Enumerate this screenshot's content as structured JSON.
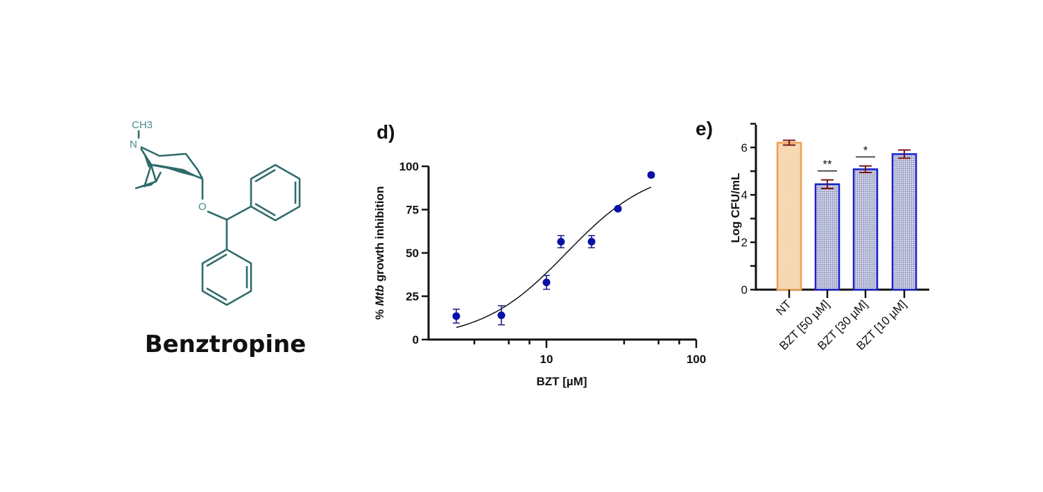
{
  "molecule": {
    "name": "Benztropine",
    "atoms": {
      "methyl": "CH3",
      "nitrogen": "N",
      "oxygen": "O"
    },
    "color": "#2f6b6b"
  },
  "chart_data": [
    {
      "panel_label": "d)",
      "type": "scatter",
      "xlabel": "BZT [µM]",
      "ylabel_prefix": "% ",
      "ylabel_italic": "Mtb",
      "ylabel_suffix": " growth inhibition",
      "x_scale": "log",
      "xlim": [
        1.6,
        100
      ],
      "ylim": [
        0,
        100
      ],
      "x_ticks": [
        "10",
        "100"
      ],
      "y_ticks": [
        "0",
        "25",
        "50",
        "75",
        "100"
      ],
      "grid": false,
      "marker_color": "#0a10a8",
      "points": [
        {
          "x": 2.5,
          "y": 13.5,
          "err": 4
        },
        {
          "x": 5,
          "y": 14,
          "err": 5.5
        },
        {
          "x": 10,
          "y": 33,
          "err": 4
        },
        {
          "x": 12.5,
          "y": 56.5,
          "err": 3.5
        },
        {
          "x": 20,
          "y": 56.5,
          "err": 3.5
        },
        {
          "x": 30,
          "y": 75.5,
          "err": 1
        },
        {
          "x": 50,
          "y": 95,
          "err": 1
        }
      ],
      "fit": {
        "model": "sigmoidal dose-response",
        "bottom": 0,
        "top": 100,
        "ec50": 13.6,
        "hill": 1.53,
        "x_range": [
          2.5,
          50
        ]
      }
    },
    {
      "panel_label": "e)",
      "type": "bar",
      "ylabel": "Log CFU/mL",
      "ylim": [
        0,
        7
      ],
      "y_ticks": [
        "0",
        "2",
        "4",
        "6"
      ],
      "grid": false,
      "categories": [
        "NT",
        "BZT [50 µM]",
        "BZT [30 µM]",
        "BZT [10 µM]"
      ],
      "values": [
        6.2,
        4.45,
        5.08,
        5.72
      ],
      "errors": [
        0.1,
        0.18,
        0.14,
        0.17
      ],
      "significance": [
        "",
        "**",
        "*",
        ""
      ],
      "colors": {
        "control_border": "#f0a050",
        "control_fill": "#f8dcb8",
        "treated_border": "#1a22cc",
        "treated_fill": "#c9cde2",
        "error_bar": "#7a1414"
      }
    }
  ]
}
